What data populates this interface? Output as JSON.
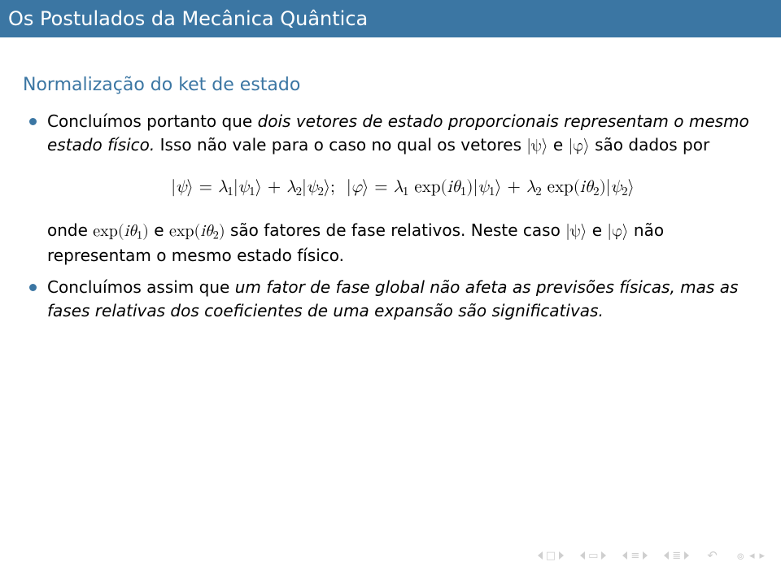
{
  "header": {
    "title": "Os Postulados da Mecânica Quântica",
    "bg_color": "#3b76a3",
    "text_color": "#ffffff"
  },
  "subtitle": {
    "text": "Normalização do ket de estado",
    "color": "#3b76a3"
  },
  "bullets": [
    {
      "pre": "Concluímos portanto que ",
      "italic": "dois vetores de estado proporcionais representam o mesmo estado físico.",
      "post1": " Isso não vale para o caso no qual os vetores ",
      "ket_psi": "|ψ⟩",
      "and1": " e ",
      "ket_phi": "|φ⟩",
      "post2": " são dados por",
      "formula": "|ψ⟩ = λ₁|ψ₁⟩ + λ₂|ψ₂⟩;  |φ⟩ = λ₁ exp(iθ₁)|ψ₁⟩ + λ₂ exp(iθ₂)|ψ₂⟩",
      "onde": "onde ",
      "exp1": "exp(iθ₁)",
      "and2": " e ",
      "exp2": "exp(iθ₂)",
      "post3": " são fatores de fase relativos. Neste caso ",
      "ket_psi2": "|ψ⟩",
      "and3": " e ",
      "ket_phi2": "|φ⟩",
      "post4": " não representam o mesmo estado físico."
    },
    {
      "pre": "Concluímos assim que ",
      "italic": "um fator de fase global não afeta as previsões físicas, mas as fases relativas dos coeficientes de uma expansão são significativas."
    }
  ],
  "colors": {
    "accent": "#3b76a3",
    "body_text": "#000000",
    "nav_icon": "#cfcfcf",
    "background": "#ffffff"
  }
}
